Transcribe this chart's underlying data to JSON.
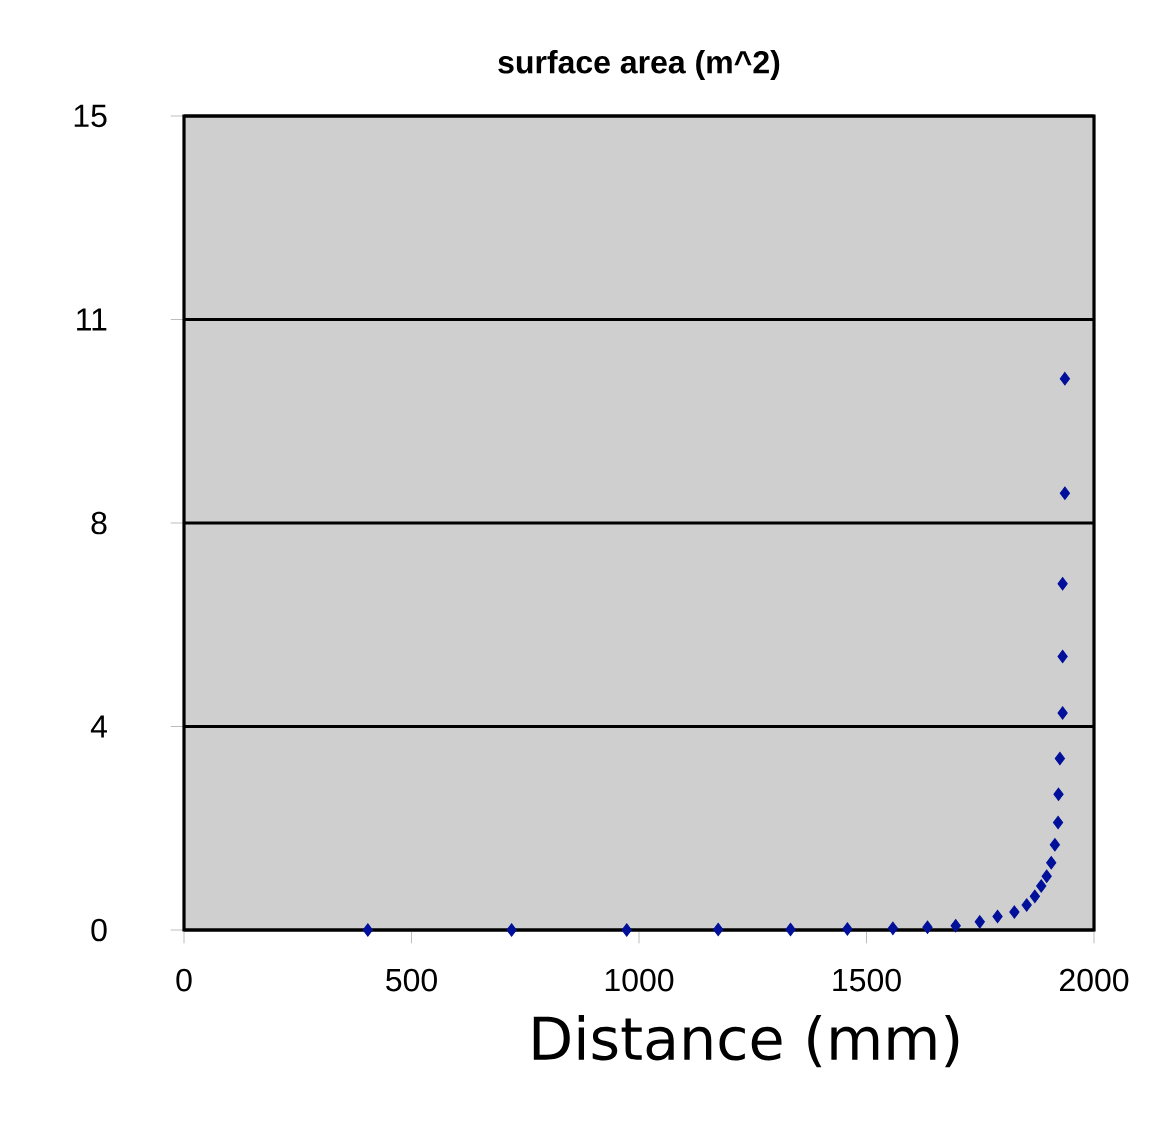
{
  "chart_data": {
    "type": "scatter",
    "title": "surface area (m^2)",
    "xlabel": "Distance (mm)",
    "xlim": [
      0,
      2000
    ],
    "xticks": [
      0,
      500,
      1000,
      1500,
      2000
    ],
    "ylim": [
      0,
      15
    ],
    "yticks": [
      0,
      {
        "value": 3.75,
        "label": "4"
      },
      {
        "value": 7.5,
        "label": "8"
      },
      {
        "value": 11.25,
        "label": "11"
      },
      15
    ],
    "grid": "y",
    "marker": "diamond",
    "series": [
      {
        "color": "#00109a",
        "x": [
          404,
          720,
          973,
          1174,
          1333,
          1458,
          1558,
          1634,
          1696,
          1749,
          1788,
          1825,
          1852,
          1870,
          1884,
          1896,
          1906,
          1914,
          1921,
          1922,
          1925,
          1931,
          1931,
          1931,
          1936,
          1936
        ],
        "values": [
          0,
          0,
          0,
          0.01,
          0.01,
          0.02,
          0.03,
          0.05,
          0.08,
          0.15,
          0.25,
          0.33,
          0.46,
          0.62,
          0.81,
          0.99,
          1.24,
          1.57,
          1.98,
          2.5,
          3.16,
          4.0,
          5.04,
          6.38,
          8.05,
          10.16
        ]
      }
    ]
  }
}
